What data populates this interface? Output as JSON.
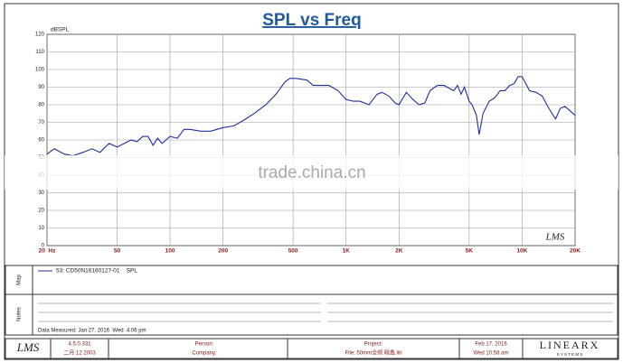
{
  "chart_data": {
    "type": "line",
    "title": "SPL vs Freq",
    "y_label": "dBSPL",
    "log_x": true,
    "grid": true,
    "xlim": [
      20,
      20000
    ],
    "ylim": [
      0,
      120
    ],
    "xticks": [
      {
        "value": 20,
        "label": "20  Hz"
      },
      50,
      100,
      200,
      500,
      {
        "value": 1000,
        "label": "1K"
      },
      {
        "value": 2000,
        "label": "2K"
      },
      {
        "value": 5000,
        "label": "5K"
      },
      {
        "value": 10000,
        "label": "10K"
      },
      {
        "value": 20000,
        "label": "20K"
      }
    ],
    "yticks": [
      0,
      10,
      20,
      30,
      40,
      50,
      60,
      70,
      80,
      90,
      100,
      110,
      120
    ],
    "x": [
      20,
      22,
      25,
      28,
      32,
      36,
      40,
      45,
      50,
      55,
      60,
      65,
      70,
      75,
      80,
      85,
      90,
      100,
      110,
      120,
      130,
      150,
      170,
      200,
      230,
      260,
      300,
      350,
      400,
      450,
      480,
      520,
      600,
      650,
      700,
      800,
      900,
      1000,
      1100,
      1200,
      1350,
      1500,
      1600,
      1750,
      1900,
      2000,
      2200,
      2400,
      2600,
      2800,
      3000,
      3300,
      3600,
      3900,
      4100,
      4300,
      4500,
      4700,
      5000,
      5200,
      5500,
      5700,
      6000,
      6500,
      7000,
      7500,
      8000,
      8500,
      9000,
      9500,
      10000,
      10500,
      11000,
      12000,
      13000,
      14000,
      15000,
      15500,
      16500,
      17500,
      18500,
      20000
    ],
    "series": [
      {
        "name": "53: CD50N16160127-01    SPL",
        "color": "#1f2f9e",
        "values": [
          52,
          55,
          52,
          51,
          53,
          55,
          53,
          58,
          56,
          58,
          60,
          59,
          62,
          62,
          57,
          61,
          58,
          62,
          61,
          66,
          66,
          65,
          65,
          67,
          68,
          71,
          75,
          80,
          86,
          93,
          95,
          95,
          94,
          91,
          91,
          91,
          88,
          83,
          82,
          82,
          80,
          86,
          87,
          85,
          81,
          80,
          87,
          83,
          80,
          81,
          88,
          91,
          91,
          89,
          88,
          91,
          86,
          90,
          82,
          80,
          74,
          63,
          75,
          82,
          84,
          88,
          88,
          91,
          92,
          96,
          96,
          92,
          88,
          87,
          85,
          79,
          74,
          72,
          78,
          79,
          77,
          74
        ]
      }
    ]
  },
  "watermark": "trade.china.cn",
  "chart_logo": "LMS",
  "panel": {
    "map_label": "Map",
    "notes_label": "Notes",
    "measured": "Data Measured: Jan 27, 2016  Wed  4:06 pm"
  },
  "footer": {
    "logo": "LMS",
    "version": "4.5.0.331",
    "version_date": "二月 12 2003",
    "person": "Person:",
    "company": "Company:",
    "project": "Project:",
    "file": "File: 50mm全频 碳鑫.lib",
    "date": "Feb 17, 2016",
    "time": "Wed 10:58 am",
    "brand": "LINEARX",
    "brand_sub": "S Y S T E M S"
  }
}
